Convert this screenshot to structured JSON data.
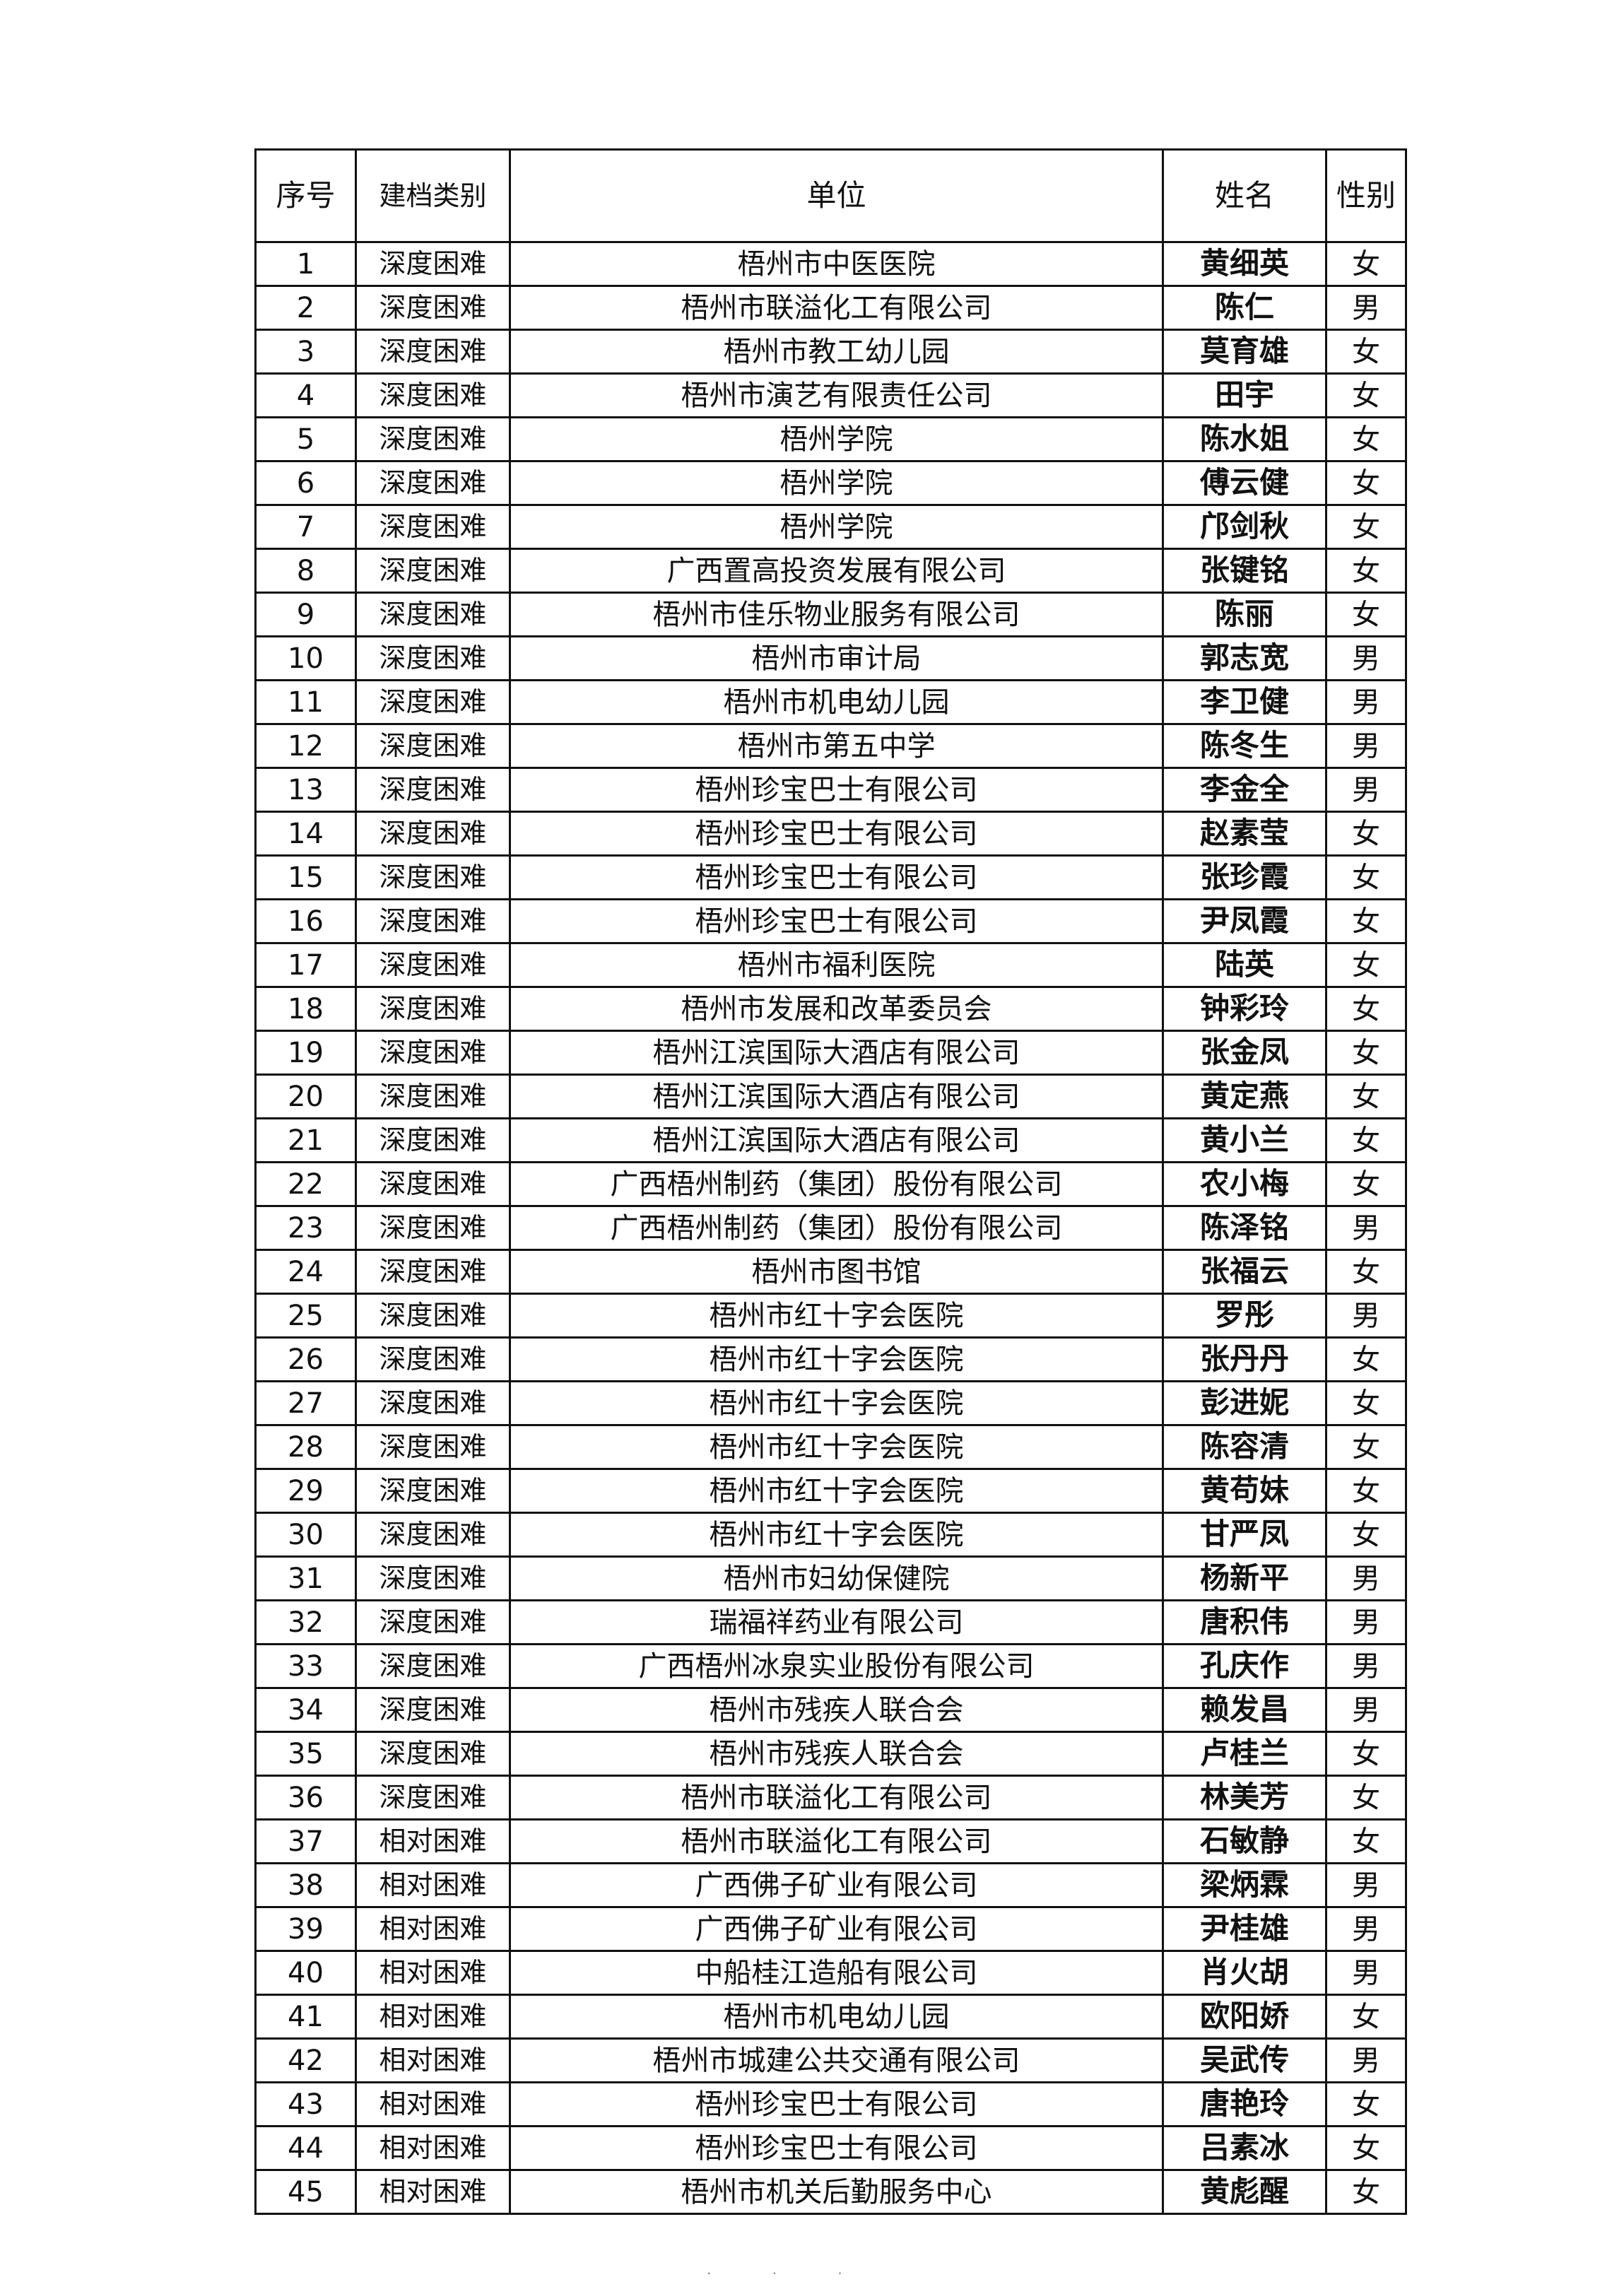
{
  "header": {
    "no": "序号",
    "type": "建档类别",
    "unit": "单位",
    "name": "姓名",
    "sex": "性别"
  },
  "rows": [
    [
      "1",
      "深度困难",
      "梧州市中医医院",
      "黄细英",
      "女"
    ],
    [
      "2",
      "深度困难",
      "梧州市联溢化工有限公司",
      "陈仁",
      "男"
    ],
    [
      "3",
      "深度困难",
      "梧州市教工幼儿园",
      "莫育雄",
      "女"
    ],
    [
      "4",
      "深度困难",
      "梧州市演艺有限责任公司",
      "田宇",
      "女"
    ],
    [
      "5",
      "深度困难",
      "梧州学院",
      "陈水姐",
      "女"
    ],
    [
      "6",
      "深度困难",
      "梧州学院",
      "傅云健",
      "女"
    ],
    [
      "7",
      "深度困难",
      "梧州学院",
      "邝剑秋",
      "女"
    ],
    [
      "8",
      "深度困难",
      "广西置高投资发展有限公司",
      "张键铭",
      "女"
    ],
    [
      "9",
      "深度困难",
      "梧州市佳乐物业服务有限公司",
      "陈丽",
      "女"
    ],
    [
      "10",
      "深度困难",
      "梧州市审计局",
      "郭志宽",
      "男"
    ],
    [
      "11",
      "深度困难",
      "梧州市机电幼儿园",
      "李卫健",
      "男"
    ],
    [
      "12",
      "深度困难",
      "梧州市第五中学",
      "陈冬生",
      "男"
    ],
    [
      "13",
      "深度困难",
      "梧州珍宝巴士有限公司",
      "李金全",
      "男"
    ],
    [
      "14",
      "深度困难",
      "梧州珍宝巴士有限公司",
      "赵素莹",
      "女"
    ],
    [
      "15",
      "深度困难",
      "梧州珍宝巴士有限公司",
      "张珍霞",
      "女"
    ],
    [
      "16",
      "深度困难",
      "梧州珍宝巴士有限公司",
      "尹凤霞",
      "女"
    ],
    [
      "17",
      "深度困难",
      "梧州市福利医院",
      "陆英",
      "女"
    ],
    [
      "18",
      "深度困难",
      "梧州市发展和改革委员会",
      "钟彩玲",
      "女"
    ],
    [
      "19",
      "深度困难",
      "梧州江滨国际大酒店有限公司",
      "张金凤",
      "女"
    ],
    [
      "20",
      "深度困难",
      "梧州江滨国际大酒店有限公司",
      "黄定燕",
      "女"
    ],
    [
      "21",
      "深度困难",
      "梧州江滨国际大酒店有限公司",
      "黄小兰",
      "女"
    ],
    [
      "22",
      "深度困难",
      "广西梧州制药（集团）股份有限公司",
      "农小梅",
      "女"
    ],
    [
      "23",
      "深度困难",
      "广西梧州制药（集团）股份有限公司",
      "陈泽铭",
      "男"
    ],
    [
      "24",
      "深度困难",
      "梧州市图书馆",
      "张福云",
      "女"
    ],
    [
      "25",
      "深度困难",
      "梧州市红十字会医院",
      "罗彤",
      "男"
    ],
    [
      "26",
      "深度困难",
      "梧州市红十字会医院",
      "张丹丹",
      "女"
    ],
    [
      "27",
      "深度困难",
      "梧州市红十字会医院",
      "彭进妮",
      "女"
    ],
    [
      "28",
      "深度困难",
      "梧州市红十字会医院",
      "陈容清",
      "女"
    ],
    [
      "29",
      "深度困难",
      "梧州市红十字会医院",
      "黄苟妹",
      "女"
    ],
    [
      "30",
      "深度困难",
      "梧州市红十字会医院",
      "甘严凤",
      "女"
    ],
    [
      "31",
      "深度困难",
      "梧州市妇幼保健院",
      "杨新平",
      "男"
    ],
    [
      "32",
      "深度困难",
      "瑞福祥药业有限公司",
      "唐积伟",
      "男"
    ],
    [
      "33",
      "深度困难",
      "广西梧州冰泉实业股份有限公司",
      "孔庆作",
      "男"
    ],
    [
      "34",
      "深度困难",
      "梧州市残疾人联合会",
      "赖发昌",
      "男"
    ],
    [
      "35",
      "深度困难",
      "梧州市残疾人联合会",
      "卢桂兰",
      "女"
    ],
    [
      "36",
      "深度困难",
      "梧州市联溢化工有限公司",
      "林美芳",
      "女"
    ],
    [
      "37",
      "相对困难",
      "梧州市联溢化工有限公司",
      "石敏静",
      "女"
    ],
    [
      "38",
      "相对困难",
      "广西佛子矿业有限公司",
      "梁炳霖",
      "男"
    ],
    [
      "39",
      "相对困难",
      "广西佛子矿业有限公司",
      "尹桂雄",
      "男"
    ],
    [
      "40",
      "相对困难",
      "中船桂江造船有限公司",
      "肖火胡",
      "男"
    ],
    [
      "41",
      "相对困难",
      "梧州市机电幼儿园",
      "欧阳娇",
      "女"
    ],
    [
      "42",
      "相对困难",
      "梧州市城建公共交通有限公司",
      "吴武传",
      "男"
    ],
    [
      "43",
      "相对困难",
      "梧州珍宝巴士有限公司",
      "唐艳玲",
      "女"
    ],
    [
      "44",
      "相对困难",
      "梧州珍宝巴士有限公司",
      "吕素冰",
      "女"
    ],
    [
      "45",
      "相对困难",
      "梧州市机关后勤服务中心",
      "黄彪醒",
      "女"
    ]
  ]
}
